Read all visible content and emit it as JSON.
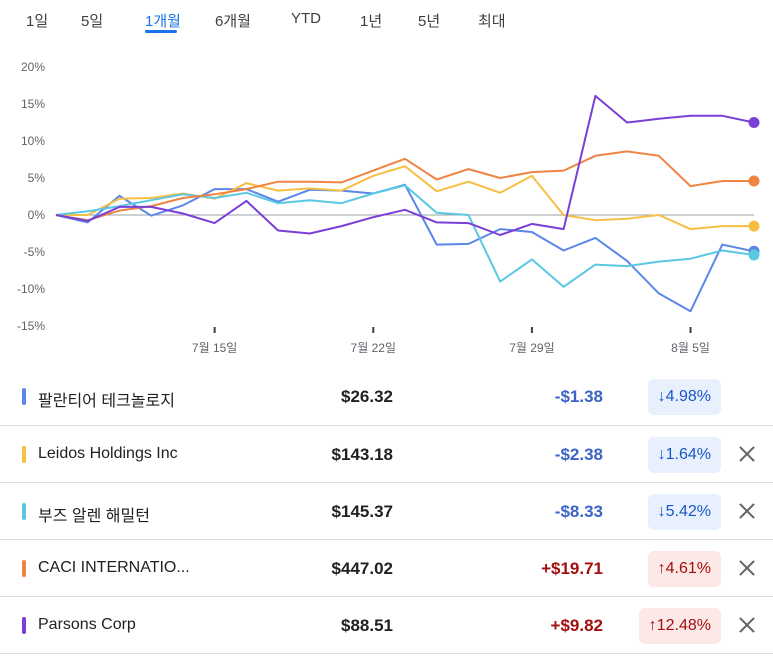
{
  "tabs": [
    {
      "label": "1일"
    },
    {
      "label": "5일"
    },
    {
      "label": "1개월"
    },
    {
      "label": "6개월"
    },
    {
      "label": "YTD"
    },
    {
      "label": "1년"
    },
    {
      "label": "5년"
    },
    {
      "label": "최대"
    }
  ],
  "active_tab": "1개월",
  "chart_data": {
    "type": "line",
    "ylim": [
      -15,
      20
    ],
    "yticks": [
      "20%",
      "15%",
      "10%",
      "5%",
      "0%",
      "-5%",
      "-10%",
      "-15%"
    ],
    "xtick_labels": [
      "7월 15일",
      "7월 22일",
      "7월 29일",
      "8월 5일"
    ],
    "series": [
      {
        "name": "팔란티어 테크놀로지",
        "color": "#5b87e8",
        "values": [
          0,
          -1,
          2.6,
          -0.1,
          1.3,
          3.5,
          3.5,
          1.8,
          3.4,
          3.3,
          2.9,
          4.1,
          -4,
          -3.9,
          -1.9,
          -2.3,
          -4.8,
          -3.1,
          -6.2,
          -10.6,
          -13,
          -4,
          -4.9
        ]
      },
      {
        "name": "Leidos Holdings Inc",
        "color": "#f6bf42",
        "values": [
          0,
          0,
          2.2,
          2.3,
          2.9,
          2.2,
          4.3,
          3.3,
          3.6,
          3.3,
          5.3,
          6.6,
          3.2,
          4.5,
          3,
          5.3,
          0,
          -0.7,
          -0.5,
          0,
          -1.9,
          -1.5,
          -1.5
        ]
      },
      {
        "name": "부즈 알렌 해밀턴",
        "color": "#5ac7e3",
        "values": [
          0,
          0.5,
          1.2,
          2.0,
          2.8,
          2.3,
          3.0,
          1.6,
          2.0,
          1.6,
          2.9,
          4.0,
          0.3,
          0,
          -9,
          -6,
          -9.7,
          -6.7,
          -6.9,
          -6.3,
          -5.9,
          -4.8,
          -5.4
        ]
      },
      {
        "name": "CACI INTERNATIO...",
        "color": "#ef8443",
        "values": [
          0,
          -0.7,
          0.6,
          1.2,
          2.3,
          2.8,
          3.5,
          4.5,
          4.5,
          4.4,
          6,
          7.6,
          4.8,
          6.2,
          5,
          5.8,
          6,
          8,
          8.6,
          8,
          3.9,
          4.6,
          4.6
        ]
      },
      {
        "name": "Parsons Corp",
        "color": "#7b3fd6",
        "values": [
          0,
          -0.8,
          1.1,
          1.1,
          0.2,
          -1.1,
          1.9,
          -2.1,
          -2.5,
          -1.5,
          -0.3,
          0.7,
          -1,
          -1.1,
          -2.7,
          -1.2,
          -1.9,
          16.1,
          12.5,
          13,
          13.4,
          13.4,
          12.5
        ]
      }
    ]
  },
  "stocks": [
    {
      "name": "팔란티어 테크놀로지",
      "price": "$26.32",
      "change": "-$1.38",
      "pct": "↓4.98%",
      "dir": "down",
      "color": "#5b87e8",
      "removable": false
    },
    {
      "name": "Leidos Holdings Inc",
      "price": "$143.18",
      "change": "-$2.38",
      "pct": "↓1.64%",
      "dir": "down",
      "color": "#f6bf42",
      "removable": true
    },
    {
      "name": "부즈 알렌 해밀턴",
      "price": "$145.37",
      "change": "-$8.33",
      "pct": "↓5.42%",
      "dir": "down",
      "color": "#5ac7e3",
      "removable": true
    },
    {
      "name": "CACI INTERNATIO...",
      "price": "$447.02",
      "change": "+$19.71",
      "pct": "↑4.61%",
      "dir": "up",
      "color": "#ef8443",
      "removable": true
    },
    {
      "name": "Parsons Corp",
      "price": "$88.51",
      "change": "+$9.82",
      "pct": "↑12.48%",
      "dir": "up",
      "color": "#7b3fd6",
      "removable": true
    }
  ]
}
